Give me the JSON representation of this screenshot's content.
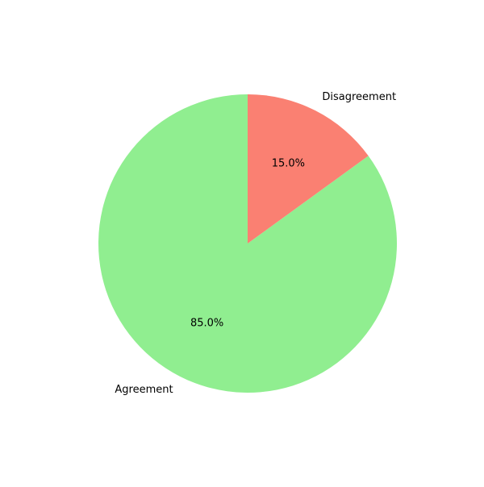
{
  "chart_data": {
    "type": "pie",
    "title": "",
    "slices": [
      {
        "label": "Agreement",
        "value": 85.0,
        "pct_label": "85.0%",
        "color": "#90ee90"
      },
      {
        "label": "Disagreement",
        "value": 15.0,
        "pct_label": "15.0%",
        "color": "#fa8072"
      }
    ],
    "start_angle_deg": 90,
    "direction": "counterclockwise"
  }
}
